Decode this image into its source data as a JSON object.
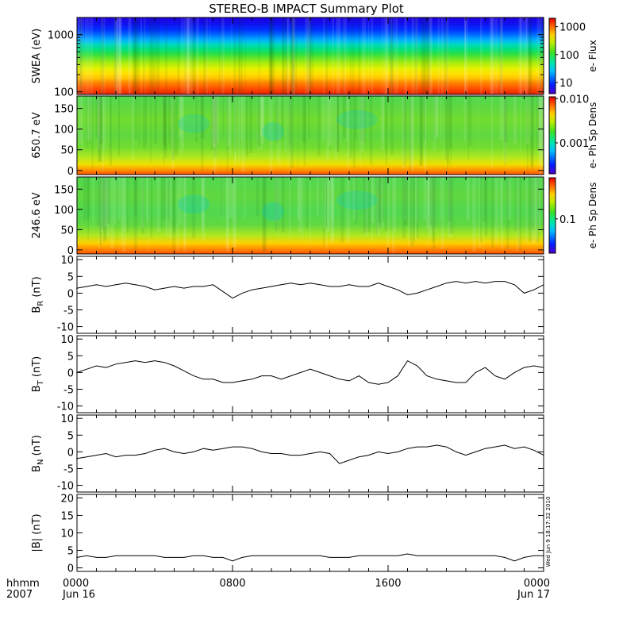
{
  "title": "STEREO-B IMPACT Summary Plot",
  "footer": {
    "label_line1": "hhmm",
    "label_line2": "2007",
    "time_ticks": [
      {
        "time": "0000",
        "date": "Jun 16",
        "hour": 0
      },
      {
        "time": "0800",
        "date": "",
        "hour": 8
      },
      {
        "time": "1600",
        "date": "",
        "hour": 16
      },
      {
        "time": "0000",
        "date": "Jun 17",
        "hour": 24
      }
    ]
  },
  "timestamp": "Wed Jun  9 18:17:32 2010",
  "colors": {
    "trace": "#000000",
    "axes": "#000000",
    "background": "#ffffff"
  },
  "chart_data": [
    {
      "type": "heatmap",
      "id": "swea",
      "ylabel": "SWEA (eV)",
      "yscale": "log",
      "ylim": [
        90,
        2000
      ],
      "ytick_values": [
        100,
        1000
      ],
      "ytick_labels": [
        "100",
        "1000"
      ],
      "colorbar_label": "e- Flux",
      "colorbar_scale": "log",
      "colorbar_range": [
        4,
        2000
      ],
      "colorbar_tick_values": [
        10,
        100,
        1000
      ],
      "colorbar_tick_labels": [
        "10",
        "100",
        "1000"
      ]
    },
    {
      "type": "heatmap",
      "id": "pad650",
      "ylabel": "650.7 eV",
      "ylim": [
        -10,
        180
      ],
      "ytick_values": [
        0,
        50,
        100,
        150
      ],
      "ytick_labels": [
        "0",
        "50",
        "100",
        "150"
      ],
      "colorbar_label": "e- Ph Sp Dens",
      "colorbar_scale": "log",
      "colorbar_range": [
        0.0002,
        0.011
      ],
      "colorbar_tick_values": [
        0.001,
        0.01
      ],
      "colorbar_tick_labels": [
        "0.001",
        "0.010"
      ]
    },
    {
      "type": "heatmap",
      "id": "pad246",
      "ylabel": "246.6 eV",
      "ylim": [
        -10,
        180
      ],
      "ytick_values": [
        0,
        50,
        100,
        150
      ],
      "ytick_labels": [
        "0",
        "50",
        "100",
        "150"
      ],
      "colorbar_label": "e- Ph Sp Dens",
      "colorbar_scale": "log",
      "colorbar_range": [
        0.04,
        0.3
      ],
      "colorbar_tick_values": [
        0.1
      ],
      "colorbar_tick_labels": [
        "0.1"
      ]
    },
    {
      "type": "line",
      "id": "br",
      "ylabel": "B",
      "ylabel_sub": "R",
      "ylabel_unit": " (nT)",
      "ylim": [
        -12,
        11
      ],
      "ytick_values": [
        -10,
        -5,
        0,
        5,
        10
      ],
      "ytick_labels": [
        "-10",
        "-5",
        "0",
        "5",
        "10"
      ],
      "x": [
        0,
        0.5,
        1,
        1.5,
        2,
        2.5,
        3,
        3.5,
        4,
        4.5,
        5,
        5.5,
        6,
        6.5,
        7,
        7.5,
        8,
        8.5,
        9,
        9.5,
        10,
        10.5,
        11,
        11.5,
        12,
        12.5,
        13,
        13.5,
        14,
        14.5,
        15,
        15.5,
        16,
        16.5,
        17,
        17.5,
        18,
        18.5,
        19,
        19.5,
        20,
        20.5,
        21,
        21.5,
        22,
        22.5,
        23,
        23.5,
        24
      ],
      "y": [
        1.5,
        2,
        2.5,
        2,
        2.5,
        3,
        2.5,
        2,
        1,
        1.5,
        2,
        1.5,
        2,
        2,
        2.5,
        0.5,
        -1.5,
        0,
        1,
        1.5,
        2,
        2.5,
        3,
        2.5,
        3,
        2.5,
        2,
        2,
        2.5,
        2,
        2,
        3,
        2,
        1,
        -0.5,
        0,
        1,
        2,
        3,
        3.5,
        3,
        3.5,
        3,
        3.5,
        3.5,
        2.5,
        0,
        1,
        2.5
      ]
    },
    {
      "type": "line",
      "id": "bt",
      "ylabel": "B",
      "ylabel_sub": "T",
      "ylabel_unit": " (nT)",
      "ylim": [
        -12,
        11
      ],
      "ytick_values": [
        -10,
        -5,
        0,
        5,
        10
      ],
      "ytick_labels": [
        "-10",
        "-5",
        "0",
        "5",
        "10"
      ],
      "x": [
        0,
        0.5,
        1,
        1.5,
        2,
        2.5,
        3,
        3.5,
        4,
        4.5,
        5,
        5.5,
        6,
        6.5,
        7,
        7.5,
        8,
        8.5,
        9,
        9.5,
        10,
        10.5,
        11,
        11.5,
        12,
        12.5,
        13,
        13.5,
        14,
        14.5,
        15,
        15.5,
        16,
        16.5,
        17,
        17.5,
        18,
        18.5,
        19,
        19.5,
        20,
        20.5,
        21,
        21.5,
        22,
        22.5,
        23,
        23.5,
        24
      ],
      "y": [
        0,
        1,
        2,
        1.5,
        2.5,
        3,
        3.5,
        3,
        3.5,
        3,
        2,
        0.5,
        -1,
        -2,
        -2,
        -3,
        -3,
        -2.5,
        -2,
        -1,
        -1,
        -2,
        -1,
        0,
        1,
        0,
        -1,
        -2,
        -2.5,
        -1,
        -3,
        -3.5,
        -3,
        -1,
        3.5,
        2,
        -1,
        -2,
        -2.5,
        -3,
        -3,
        0,
        1.5,
        -1,
        -2,
        0,
        1.5,
        2,
        1.5
      ]
    },
    {
      "type": "line",
      "id": "bn",
      "ylabel": "B",
      "ylabel_sub": "N",
      "ylabel_unit": " (nT)",
      "ylim": [
        -12,
        11
      ],
      "ytick_values": [
        -10,
        -5,
        0,
        5,
        10
      ],
      "ytick_labels": [
        "-10",
        "-5",
        "0",
        "5",
        "10"
      ],
      "x": [
        0,
        0.5,
        1,
        1.5,
        2,
        2.5,
        3,
        3.5,
        4,
        4.5,
        5,
        5.5,
        6,
        6.5,
        7,
        7.5,
        8,
        8.5,
        9,
        9.5,
        10,
        10.5,
        11,
        11.5,
        12,
        12.5,
        13,
        13.5,
        14,
        14.5,
        15,
        15.5,
        16,
        16.5,
        17,
        17.5,
        18,
        18.5,
        19,
        19.5,
        20,
        20.5,
        21,
        21.5,
        22,
        22.5,
        23,
        23.5,
        24
      ],
      "y": [
        -2,
        -1.5,
        -1,
        -0.5,
        -1.5,
        -1,
        -1,
        -0.5,
        0.5,
        1,
        0,
        -0.5,
        0,
        1,
        0.5,
        1,
        1.5,
        1.5,
        1,
        0,
        -0.5,
        -0.5,
        -1,
        -1,
        -0.5,
        0,
        -0.5,
        -3.5,
        -2.5,
        -1.5,
        -1,
        0,
        -0.5,
        0,
        1,
        1.5,
        1.5,
        2,
        1.5,
        0,
        -1,
        0,
        1,
        1.5,
        2,
        1,
        1.5,
        0.5,
        -1
      ]
    },
    {
      "type": "line",
      "id": "bmag",
      "ylabel": "|B| (nT)",
      "ylabel_sub": "",
      "ylabel_unit": "",
      "ylim": [
        -1,
        21
      ],
      "ytick_values": [
        0,
        5,
        10,
        15,
        20
      ],
      "ytick_labels": [
        "0",
        "5",
        "10",
        "15",
        "20"
      ],
      "x": [
        0,
        0.5,
        1,
        1.5,
        2,
        2.5,
        3,
        3.5,
        4,
        4.5,
        5,
        5.5,
        6,
        6.5,
        7,
        7.5,
        8,
        8.5,
        9,
        9.5,
        10,
        10.5,
        11,
        11.5,
        12,
        12.5,
        13,
        13.5,
        14,
        14.5,
        15,
        15.5,
        16,
        16.5,
        17,
        17.5,
        18,
        18.5,
        19,
        19.5,
        20,
        20.5,
        21,
        21.5,
        22,
        22.5,
        23,
        23.5,
        24
      ],
      "y": [
        3,
        3.5,
        3,
        3,
        3.5,
        3.5,
        3.5,
        3.5,
        3.5,
        3,
        3,
        3,
        3.5,
        3.5,
        3,
        3,
        2,
        3,
        3.5,
        3.5,
        3.5,
        3.5,
        3.5,
        3.5,
        3.5,
        3.5,
        3,
        3,
        3,
        3.5,
        3.5,
        3.5,
        3.5,
        3.5,
        4,
        3.5,
        3.5,
        3.5,
        3.5,
        3.5,
        3.5,
        3.5,
        3.5,
        3.5,
        3,
        2,
        3,
        3.5,
        3.5
      ]
    }
  ]
}
